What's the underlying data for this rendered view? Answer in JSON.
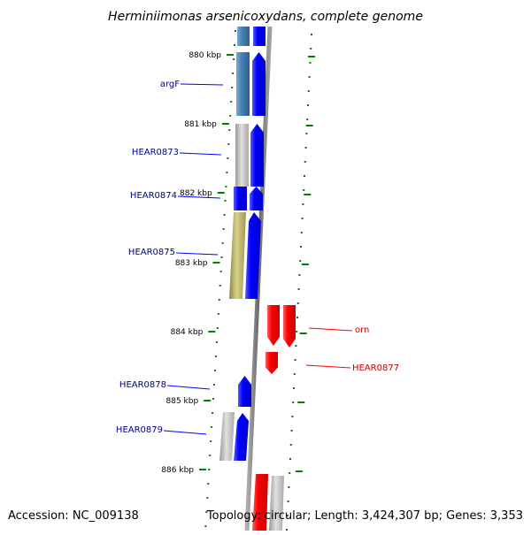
{
  "title": "Herminiimonas arsenicoxydans, complete genome",
  "footer": {
    "accession": "Accession: NC_009138",
    "stats": "Topology: circular; Length: 3,424,307 bp; Genes: 3,353"
  },
  "colors": {
    "forward_gene": "#0000ff",
    "reverse_gene": "#ff0000",
    "forward_label": "#00008b",
    "reverse_label": "#cc0000",
    "tick": "#008000",
    "backbone": "#808080",
    "cog_steel": "#4682b4",
    "cog_gray": "#c0c0c0",
    "cog_khaki": "#bdb76b"
  },
  "ticks": [
    {
      "label": "880 kbp"
    },
    {
      "label": "881 kbp"
    },
    {
      "label": "882 kbp"
    },
    {
      "label": "883 kbp"
    },
    {
      "label": "884 kbp"
    },
    {
      "label": "885 kbp"
    },
    {
      "label": "886 kbp"
    }
  ],
  "gene_labels": [
    {
      "text": "argF",
      "strand": "forward"
    },
    {
      "text": "HEAR0873",
      "strand": "forward"
    },
    {
      "text": "HEAR0874",
      "strand": "forward"
    },
    {
      "text": "HEAR0875",
      "strand": "forward"
    },
    {
      "text": "orn",
      "strand": "reverse"
    },
    {
      "text": "HEAR0877",
      "strand": "reverse"
    },
    {
      "text": "HEAR0878",
      "strand": "forward"
    },
    {
      "text": "HEAR0879",
      "strand": "forward"
    }
  ],
  "genes": [
    {
      "name": "top-fwd",
      "strand": "forward",
      "cog": "steel"
    },
    {
      "name": "argF",
      "strand": "forward",
      "cog": "steel"
    },
    {
      "name": "HEAR0873",
      "strand": "forward",
      "cog": "gray"
    },
    {
      "name": "HEAR0874",
      "strand": "forward",
      "cog": "blue"
    },
    {
      "name": "HEAR0875",
      "strand": "forward",
      "cog": "khaki"
    },
    {
      "name": "orn",
      "strand": "reverse",
      "cog": "red"
    },
    {
      "name": "HEAR0877",
      "strand": "reverse",
      "cog": "none"
    },
    {
      "name": "HEAR0878",
      "strand": "forward",
      "cog": "none"
    },
    {
      "name": "HEAR0879",
      "strand": "forward",
      "cog": "gray"
    },
    {
      "name": "bottom-rev",
      "strand": "reverse",
      "cog": "gray"
    }
  ]
}
